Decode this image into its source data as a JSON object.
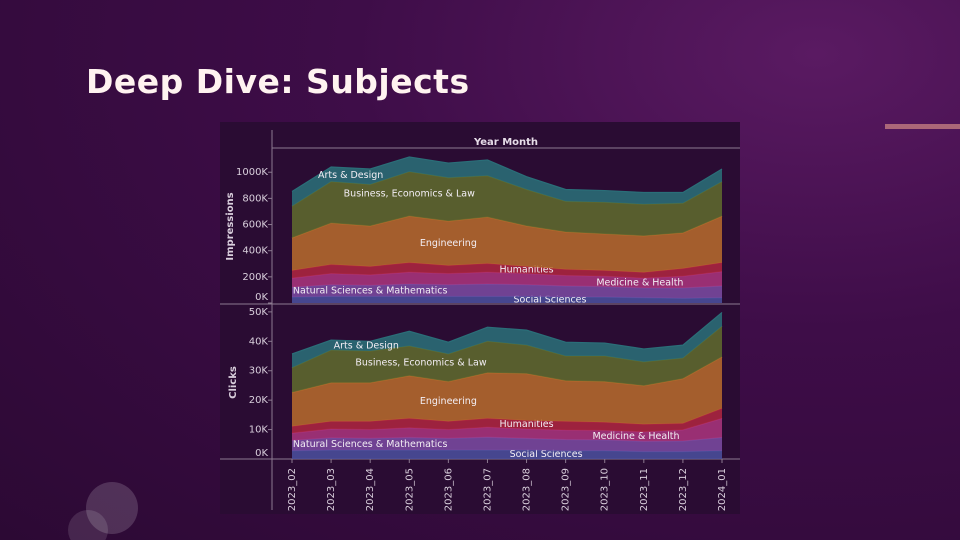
{
  "slide": {
    "title": "Deep Dive: Subjects"
  },
  "chart_data": [
    {
      "type": "area",
      "stacked": true,
      "x_label": "Year Month",
      "y_label": "Impressions",
      "ylim": [
        0,
        1170000
      ],
      "yticks": [
        {
          "value": 0,
          "label": "0K"
        },
        {
          "value": 200000,
          "label": "200K"
        },
        {
          "value": 400000,
          "label": "400K"
        },
        {
          "value": 600000,
          "label": "600K"
        },
        {
          "value": 800000,
          "label": "800K"
        },
        {
          "value": 1000000,
          "label": "1000K"
        }
      ],
      "series": [
        {
          "name": "Social Sciences",
          "color": "#4a4f9c",
          "values": [
            45000,
            50000,
            50000,
            50000,
            50000,
            50000,
            50000,
            45000,
            45000,
            40000,
            35000,
            40000
          ]
        },
        {
          "name": "Natural Sciences & Mathematics",
          "color": "#7a4aa0",
          "values": [
            75000,
            90000,
            85000,
            95000,
            90000,
            95000,
            90000,
            85000,
            80000,
            75000,
            80000,
            90000
          ]
        },
        {
          "name": "Medicine & Health",
          "color": "#a8347c",
          "values": [
            70000,
            85000,
            80000,
            90000,
            85000,
            90000,
            85000,
            80000,
            80000,
            75000,
            90000,
            110000
          ]
        },
        {
          "name": "Humanities",
          "color": "#ad2540",
          "values": [
            59000,
            69000,
            64000,
            74000,
            62000,
            67000,
            54000,
            47000,
            44000,
            44000,
            59000,
            69000
          ]
        },
        {
          "name": "Engineering",
          "color": "#b56a2c",
          "values": [
            249000,
            317000,
            310000,
            355000,
            339000,
            355000,
            310000,
            286000,
            279000,
            279000,
            272000,
            355000
          ]
        },
        {
          "name": "Business, Economics & Law",
          "color": "#5f6a2e",
          "values": [
            242000,
            317000,
            317000,
            340000,
            332000,
            316000,
            279000,
            234000,
            242000,
            242000,
            227000,
            264000
          ]
        },
        {
          "name": "Arts & Design",
          "color": "#2a6e78",
          "values": [
            113000,
            112000,
            119000,
            113000,
            112000,
            121000,
            98000,
            91000,
            90000,
            90000,
            82000,
            97000
          ]
        }
      ]
    },
    {
      "type": "area",
      "stacked": true,
      "y_label": "Clicks",
      "categories": [
        "2023_02",
        "2023_03",
        "2023_04",
        "2023_05",
        "2023_06",
        "2023_07",
        "2023_08",
        "2023_09",
        "2023_10",
        "2023_11",
        "2023_12",
        "2024_01"
      ],
      "ylim": [
        0,
        52000
      ],
      "yticks": [
        {
          "value": 0,
          "label": "0K"
        },
        {
          "value": 10000,
          "label": "10K"
        },
        {
          "value": 20000,
          "label": "20K"
        },
        {
          "value": 30000,
          "label": "30K"
        },
        {
          "value": 40000,
          "label": "40K"
        },
        {
          "value": 50000,
          "label": "50K"
        }
      ],
      "series": [
        {
          "name": "Social Sciences",
          "color": "#4a4f9c",
          "values": [
            2800,
            3000,
            3000,
            3000,
            3000,
            3000,
            3000,
            2800,
            2800,
            2500,
            2500,
            2800
          ]
        },
        {
          "name": "Natural Sciences & Mathematics",
          "color": "#7a4aa0",
          "values": [
            3500,
            4200,
            4000,
            4300,
            4000,
            4400,
            4000,
            3800,
            3700,
            3500,
            3600,
            4500
          ]
        },
        {
          "name": "Medicine & Health",
          "color": "#a8347c",
          "values": [
            2500,
            3000,
            3000,
            3300,
            3000,
            3400,
            3200,
            3200,
            3200,
            3200,
            3800,
            6500
          ]
        },
        {
          "name": "Humanities",
          "color": "#ad2540",
          "values": [
            2300,
            2600,
            2800,
            3200,
            2800,
            3000,
            2900,
            3000,
            2800,
            2600,
            2200,
            3400
          ]
        },
        {
          "name": "Engineering",
          "color": "#b56a2c",
          "values": [
            11500,
            13100,
            13100,
            14500,
            13500,
            15500,
            15900,
            13800,
            13800,
            13100,
            15200,
            17500
          ]
        },
        {
          "name": "Business, Economics & Law",
          "color": "#5f6a2e",
          "values": [
            8400,
            11100,
            10800,
            10100,
            9400,
            10700,
            9700,
            8400,
            8700,
            8100,
            7000,
            10400
          ]
        },
        {
          "name": "Arts & Design",
          "color": "#2a6e78",
          "values": [
            4700,
            3400,
            3300,
            5000,
            4000,
            4800,
            5100,
            4700,
            4400,
            4400,
            4400,
            4700
          ]
        }
      ]
    }
  ]
}
